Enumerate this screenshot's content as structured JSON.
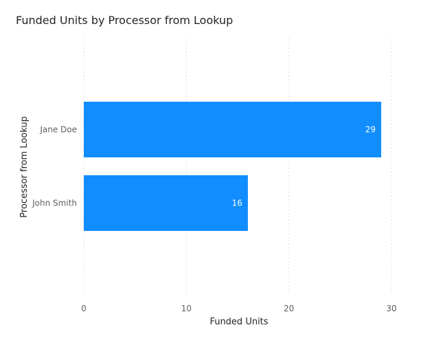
{
  "chart_data": {
    "type": "bar",
    "orientation": "horizontal",
    "title": "Funded Units by Processor from Lookup",
    "xlabel": "Funded Units",
    "ylabel": "Processor from Lookup",
    "categories": [
      "Jane Doe",
      "John Smith"
    ],
    "values": [
      29,
      16
    ],
    "xlim": [
      0,
      30
    ],
    "xticks": [
      0,
      10,
      20,
      30
    ],
    "grid": true,
    "bar_color": "#118DFF",
    "label_inside_color": "#FFFFFF",
    "label_outside_color": "#605E5C"
  }
}
